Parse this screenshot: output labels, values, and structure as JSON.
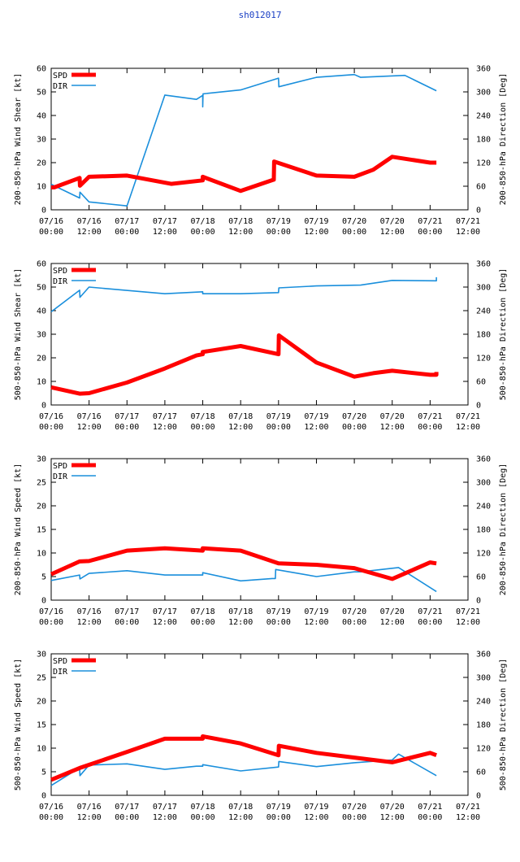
{
  "title": "sh012017",
  "colors": {
    "spd": "#ff0000",
    "dir": "#1a8fdc",
    "axis": "#000000"
  },
  "x_ticks": [
    {
      "t": 0,
      "l1": "07/16",
      "l2": "00:00"
    },
    {
      "t": 12,
      "l1": "07/16",
      "l2": "12:00"
    },
    {
      "t": 24,
      "l1": "07/17",
      "l2": "00:00"
    },
    {
      "t": 36,
      "l1": "07/17",
      "l2": "12:00"
    },
    {
      "t": 48,
      "l1": "07/18",
      "l2": "00:00"
    },
    {
      "t": 60,
      "l1": "07/18",
      "l2": "12:00"
    },
    {
      "t": 72,
      "l1": "07/19",
      "l2": "00:00"
    },
    {
      "t": 84,
      "l1": "07/19",
      "l2": "12:00"
    },
    {
      "t": 96,
      "l1": "07/20",
      "l2": "00:00"
    },
    {
      "t": 108,
      "l1": "07/20",
      "l2": "12:00"
    },
    {
      "t": 120,
      "l1": "07/21",
      "l2": "00:00"
    },
    {
      "t": 132,
      "l1": "07/21",
      "l2": "12:00"
    }
  ],
  "chart_data": [
    {
      "type": "line",
      "ylabel": "200-850-hPa Wind Shear [kt]",
      "y2label": "200-850-hPa Direction [Deg]",
      "ylim": [
        0,
        60
      ],
      "yticks": [
        0,
        10,
        20,
        30,
        40,
        50,
        60
      ],
      "y2lim": [
        0,
        360
      ],
      "y2ticks": [
        0,
        60,
        120,
        180,
        240,
        300,
        360
      ],
      "xlim": [
        0,
        132
      ],
      "legend": {
        "spd": "SPD",
        "dir": "DIR"
      },
      "spd": [
        [
          0,
          9.5
        ],
        [
          1,
          9.5
        ],
        [
          9,
          13.5
        ],
        [
          9.1,
          10.2
        ],
        [
          12,
          14
        ],
        [
          24,
          14.5
        ],
        [
          38,
          11
        ],
        [
          48,
          12.5
        ],
        [
          48,
          14
        ],
        [
          60,
          8
        ],
        [
          70.5,
          12.8
        ],
        [
          70.6,
          20.5
        ],
        [
          84,
          14.5
        ],
        [
          96,
          14
        ],
        [
          102,
          17
        ],
        [
          108,
          22.5
        ],
        [
          120,
          20
        ],
        [
          122,
          20
        ]
      ],
      "dir": [
        [
          0,
          65
        ],
        [
          9,
          30
        ],
        [
          9.1,
          45
        ],
        [
          12,
          20
        ],
        [
          24,
          10
        ],
        [
          36,
          292
        ],
        [
          46,
          281
        ],
        [
          48,
          291
        ],
        [
          48,
          262
        ],
        [
          48.1,
          295
        ],
        [
          60,
          305
        ],
        [
          72,
          335
        ],
        [
          72.1,
          313
        ],
        [
          84,
          337
        ],
        [
          96,
          344
        ],
        [
          98,
          337
        ],
        [
          112,
          342
        ],
        [
          122,
          303
        ]
      ]
    },
    {
      "type": "line",
      "ylabel": "500-850-hPa Wind Shear [kt]",
      "y2label": "500-850-hPa Direction [Deg]",
      "ylim": [
        0,
        60
      ],
      "yticks": [
        0,
        10,
        20,
        30,
        40,
        50,
        60
      ],
      "y2lim": [
        0,
        360
      ],
      "y2ticks": [
        0,
        60,
        120,
        180,
        240,
        300,
        360
      ],
      "xlim": [
        0,
        132
      ],
      "legend": {
        "spd": "SPD",
        "dir": "DIR"
      },
      "spd": [
        [
          0,
          7.5
        ],
        [
          9,
          4.8
        ],
        [
          12,
          5
        ],
        [
          24,
          9.5
        ],
        [
          36,
          15.5
        ],
        [
          46,
          21
        ],
        [
          48,
          21.5
        ],
        [
          48,
          22.5
        ],
        [
          60,
          25
        ],
        [
          72,
          21.5
        ],
        [
          72.1,
          29.5
        ],
        [
          84,
          18
        ],
        [
          96,
          12
        ],
        [
          102,
          13.5
        ],
        [
          108,
          14.5
        ],
        [
          120,
          12.8
        ],
        [
          122,
          12.8
        ],
        [
          122,
          14
        ]
      ],
      "dir": [
        [
          0,
          237
        ],
        [
          9,
          292
        ],
        [
          9.1,
          274
        ],
        [
          12,
          300
        ],
        [
          36,
          283
        ],
        [
          48,
          288
        ],
        [
          48,
          283
        ],
        [
          60,
          283
        ],
        [
          72,
          286
        ],
        [
          72.1,
          298
        ],
        [
          84,
          303
        ],
        [
          98,
          305
        ],
        [
          108,
          317
        ],
        [
          122,
          316
        ],
        [
          122,
          325
        ]
      ]
    },
    {
      "type": "line",
      "ylabel": "200-850-hPa Wind Speed [kt]",
      "y2label": "200-850-hPa Direction [Deg]",
      "ylim": [
        0,
        30
      ],
      "yticks": [
        0,
        5,
        10,
        15,
        20,
        25,
        30
      ],
      "y2lim": [
        0,
        360
      ],
      "y2ticks": [
        0,
        60,
        120,
        180,
        240,
        300,
        360
      ],
      "xlim": [
        0,
        132
      ],
      "legend": {
        "spd": "SPD",
        "dir": "DIR"
      },
      "spd": [
        [
          0,
          5.5
        ],
        [
          9,
          8.2
        ],
        [
          12,
          8.3
        ],
        [
          24,
          10.5
        ],
        [
          36,
          11
        ],
        [
          48,
          10.5
        ],
        [
          48,
          11
        ],
        [
          60,
          10.5
        ],
        [
          72,
          7.8
        ],
        [
          84,
          7.5
        ],
        [
          96,
          6.8
        ],
        [
          108,
          4.5
        ],
        [
          120,
          8
        ],
        [
          122,
          7.8
        ]
      ],
      "dir": [
        [
          0,
          50
        ],
        [
          9,
          64
        ],
        [
          9.1,
          54
        ],
        [
          12,
          68
        ],
        [
          24,
          75
        ],
        [
          36,
          64
        ],
        [
          48,
          64
        ],
        [
          48,
          70
        ],
        [
          60,
          49
        ],
        [
          70,
          55
        ],
        [
          71,
          55
        ],
        [
          71.1,
          78
        ],
        [
          84,
          60
        ],
        [
          96,
          72
        ],
        [
          98,
          72
        ],
        [
          110,
          83
        ],
        [
          122,
          22
        ]
      ]
    },
    {
      "type": "line",
      "ylabel": "500-850-hPa Wind Speed [kt]",
      "y2label": "500-850-hPa Direction [Deg]",
      "ylim": [
        0,
        30
      ],
      "yticks": [
        0,
        5,
        10,
        15,
        20,
        25,
        30
      ],
      "y2lim": [
        0,
        360
      ],
      "y2ticks": [
        0,
        60,
        120,
        180,
        240,
        300,
        360
      ],
      "xlim": [
        0,
        132
      ],
      "legend": {
        "spd": "SPD",
        "dir": "DIR"
      },
      "spd": [
        [
          0,
          3.3
        ],
        [
          9,
          5.8
        ],
        [
          24,
          9.2
        ],
        [
          36,
          12
        ],
        [
          48,
          12
        ],
        [
          48,
          12.5
        ],
        [
          60,
          11
        ],
        [
          72,
          8.5
        ],
        [
          72.1,
          10.5
        ],
        [
          84,
          9
        ],
        [
          96,
          8
        ],
        [
          108,
          7
        ],
        [
          120,
          9
        ],
        [
          122,
          8.5
        ]
      ],
      "dir": [
        [
          0,
          25
        ],
        [
          9,
          70
        ],
        [
          9.1,
          50
        ],
        [
          12,
          77
        ],
        [
          24,
          80
        ],
        [
          36,
          66
        ],
        [
          46,
          74
        ],
        [
          48,
          74
        ],
        [
          48,
          78
        ],
        [
          60,
          62
        ],
        [
          72,
          72
        ],
        [
          72.1,
          86
        ],
        [
          84,
          73
        ],
        [
          96,
          83
        ],
        [
          108,
          90
        ],
        [
          110,
          105
        ],
        [
          122,
          50
        ]
      ]
    }
  ]
}
